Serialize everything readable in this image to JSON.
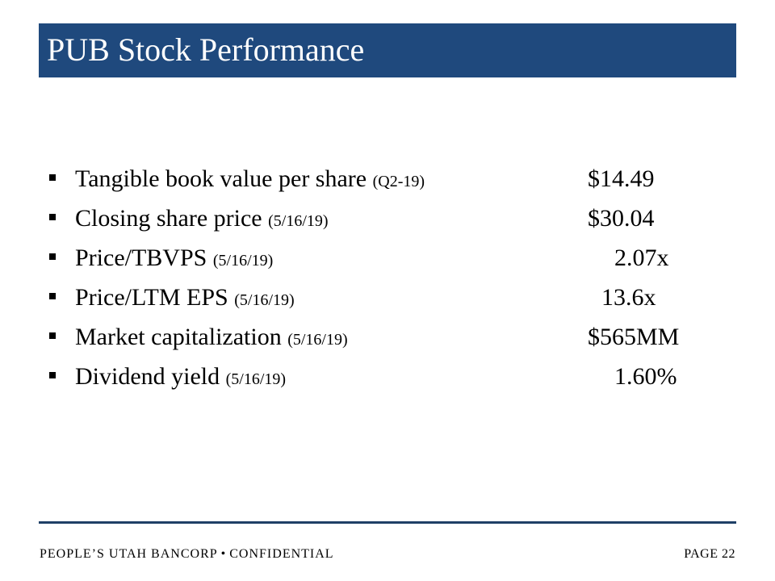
{
  "header": {
    "title": "PUB Stock Performance"
  },
  "metrics": [
    {
      "label": "Tangible book value per share",
      "note": "(Q2-19)",
      "value": "$14.49"
    },
    {
      "label": "Closing share price",
      "note": "(5/16/19)",
      "value": "$30.04"
    },
    {
      "label": "Price/TBVPS",
      "note": "(5/16/19)",
      "value": "2.07x"
    },
    {
      "label": "Price/LTM EPS",
      "note": "(5/16/19)",
      "value": "13.6x"
    },
    {
      "label": "Market capitalization",
      "note": "(5/16/19)",
      "value": "$565MM"
    },
    {
      "label": "Dividend yield",
      "note": "(5/16/19)",
      "value": "1.60%"
    }
  ],
  "footer": {
    "company": "PEOPLE’S UTAH  BANCORP",
    "separator": "•",
    "confidential": "CONFIDENTIAL",
    "page": "PAGE 22"
  },
  "colors": {
    "title_bar": "#1f497d",
    "footer_rule": "#1f3f66"
  }
}
